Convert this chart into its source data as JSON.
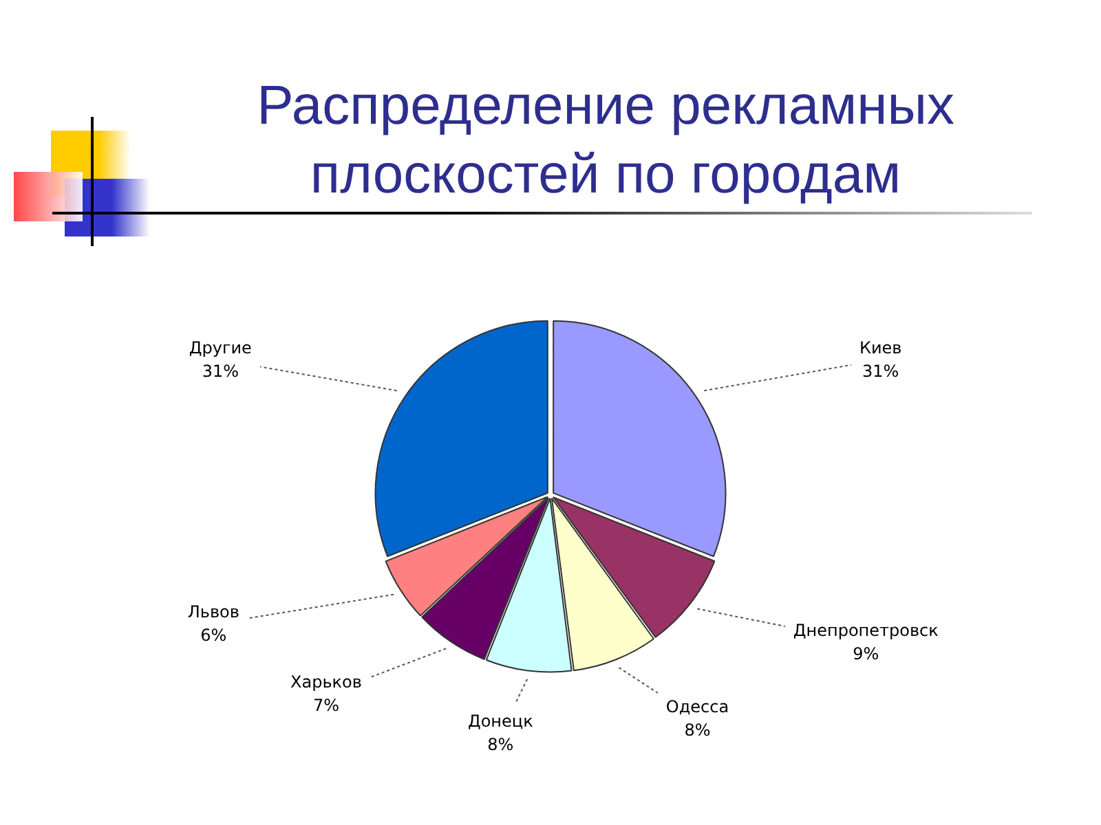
{
  "chart_data": {
    "type": "pie",
    "title": "Распределение рекламных плоскостей по городам",
    "categories": [
      "Киев",
      "Днепропетровск",
      "Одесса",
      "Донецк",
      "Харьков",
      "Львов",
      "Другие"
    ],
    "values": [
      31,
      9,
      8,
      8,
      7,
      6,
      31
    ],
    "colors": [
      "#9999ff",
      "#993366",
      "#ffffcc",
      "#ccffff",
      "#660066",
      "#ff8080",
      "#0066cc"
    ],
    "value_labels": [
      "31%",
      "9%",
      "8%",
      "8%",
      "7%",
      "6%",
      "31%"
    ],
    "legend": false
  }
}
